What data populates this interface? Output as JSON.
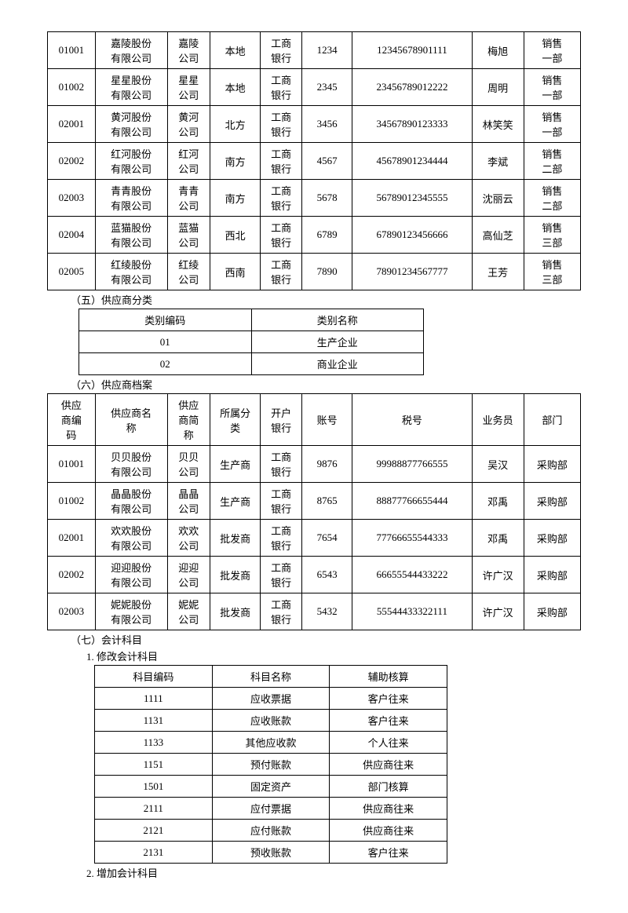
{
  "table1": {
    "rows": [
      [
        "01001",
        "嘉陵股份有限公司",
        "嘉陵公司",
        "本地",
        "工商银行",
        "1234",
        "12345678901111",
        "梅旭",
        "销售一部"
      ],
      [
        "01002",
        "星星股份有限公司",
        "星星公司",
        "本地",
        "工商银行",
        "2345",
        "23456789012222",
        "周明",
        "销售一部"
      ],
      [
        "02001",
        "黄河股份有限公司",
        "黄河公司",
        "北方",
        "工商银行",
        "3456",
        "34567890123333",
        "林笑笑",
        "销售一部"
      ],
      [
        "02002",
        "红河股份有限公司",
        "红河公司",
        "南方",
        "工商银行",
        "4567",
        "45678901234444",
        "李斌",
        "销售二部"
      ],
      [
        "02003",
        "青青股份有限公司",
        "青青公司",
        "南方",
        "工商银行",
        "5678",
        "56789012345555",
        "沈丽云",
        "销售二部"
      ],
      [
        "02004",
        "蓝猫股份有限公司",
        "蓝猫公司",
        "西北",
        "工商银行",
        "6789",
        "67890123456666",
        "高仙芝",
        "销售三部"
      ],
      [
        "02005",
        "红绫股份有限公司",
        "红绫公司",
        "西南",
        "工商银行",
        "7890",
        "78901234567777",
        "王芳",
        "销售三部"
      ]
    ]
  },
  "section5": {
    "title": "（五）供应商分类",
    "headers": [
      "类别编码",
      "类别名称"
    ],
    "rows": [
      [
        "01",
        "生产企业"
      ],
      [
        "02",
        "商业企业"
      ]
    ]
  },
  "section6": {
    "title": "（六）供应商档案",
    "headers": [
      "供应商编码",
      "供应商名称",
      "供应商简称",
      "所属分类",
      "开户银行",
      "账号",
      "税号",
      "业务员",
      "部门"
    ],
    "rows": [
      [
        "01001",
        "贝贝股份有限公司",
        "贝贝公司",
        "生产商",
        "工商银行",
        "9876",
        "99988877766555",
        "吴汉",
        "采购部"
      ],
      [
        "01002",
        "晶晶股份有限公司",
        "晶晶公司",
        "生产商",
        "工商银行",
        "8765",
        "88877766655444",
        "邓禹",
        "采购部"
      ],
      [
        "02001",
        "欢欢股份有限公司",
        "欢欢公司",
        "批发商",
        "工商银行",
        "7654",
        "77766655544333",
        "邓禹",
        "采购部"
      ],
      [
        "02002",
        "迎迎股份有限公司",
        "迎迎公司",
        "批发商",
        "工商银行",
        "6543",
        "66655544433222",
        "许广汉",
        "采购部"
      ],
      [
        "02003",
        "妮妮股份有限公司",
        "妮妮公司",
        "批发商",
        "工商银行",
        "5432",
        "55544433322111",
        "许广汉",
        "采购部"
      ]
    ]
  },
  "section7": {
    "title": "（七）会计科目",
    "sub1": "1. 修改会计科目",
    "sub2": "2. 增加会计科目",
    "headers": [
      "科目编码",
      "科目名称",
      "辅助核算"
    ],
    "rows": [
      [
        "1111",
        "应收票据",
        "客户往来"
      ],
      [
        "1131",
        "应收账款",
        "客户往来"
      ],
      [
        "1133",
        "其他应收款",
        "个人往来"
      ],
      [
        "1151",
        "预付账款",
        "供应商往来"
      ],
      [
        "1501",
        "固定资产",
        "部门核算"
      ],
      [
        "2111",
        "应付票据",
        "供应商往来"
      ],
      [
        "2121",
        "应付账款",
        "供应商往来"
      ],
      [
        "2131",
        "预收账款",
        "客户往来"
      ]
    ]
  }
}
